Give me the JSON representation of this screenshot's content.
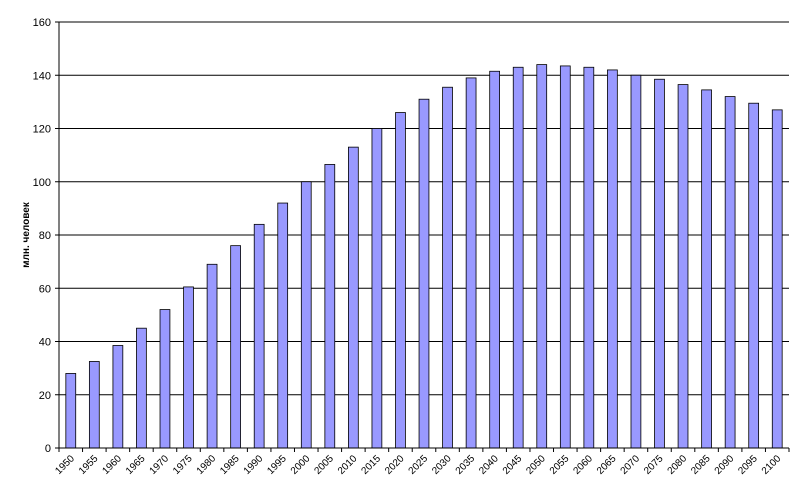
{
  "chart_data": {
    "type": "bar",
    "title": "",
    "xlabel": "",
    "ylabel": "млн. человек",
    "ylim": [
      0,
      160
    ],
    "yticks": [
      0,
      20,
      40,
      60,
      80,
      100,
      120,
      140,
      160
    ],
    "grid": true,
    "legend": "none",
    "categories": [
      "1950",
      "1955",
      "1960",
      "1965",
      "1970",
      "1975",
      "1980",
      "1985",
      "1990",
      "1995",
      "2000",
      "2005",
      "2010",
      "2015",
      "2020",
      "2025",
      "2030",
      "2035",
      "2040",
      "2045",
      "2050",
      "2055",
      "2060",
      "2065",
      "2070",
      "2075",
      "2080",
      "2085",
      "2090",
      "2095",
      "2100"
    ],
    "series": [
      {
        "values": [
          28,
          32.5,
          38.5,
          45,
          52,
          60.5,
          69,
          76,
          84,
          92,
          100,
          106.5,
          113,
          120,
          126,
          131,
          135.5,
          139,
          141.5,
          143,
          144,
          143.5,
          143,
          142,
          140,
          138.5,
          136.5,
          134.5,
          132,
          129.5,
          127
        ]
      }
    ],
    "colors": {
      "bar_fill": "#9999ff",
      "bar_stroke": "#000000",
      "grid": "#000000",
      "axis": "#000000"
    }
  }
}
